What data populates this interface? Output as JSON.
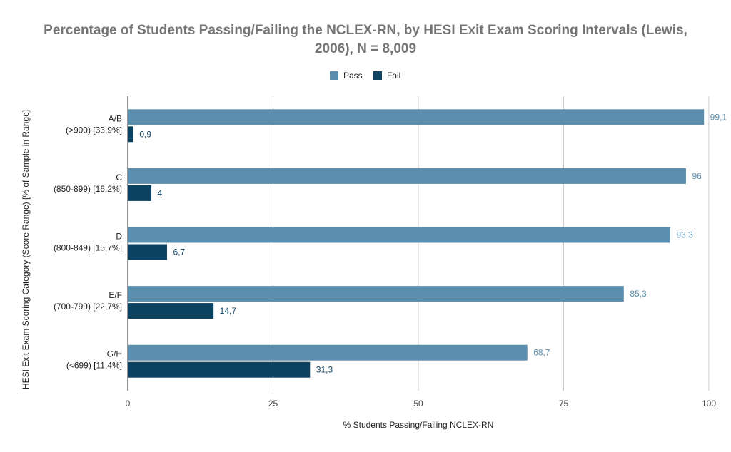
{
  "chart_data": {
    "type": "bar",
    "orientation": "horizontal",
    "title_line1": "Percentage of Students Passing/Failing the NCLEX-RN, by HESI Exit Exam Scoring Intervals (Lewis,",
    "title_line2": "2006), N = 8,009",
    "xlabel": "% Students Passing/Failing NCLEX-RN",
    "ylabel": "HESI Exit Exam Scoring Category (Score Range) [% of Sample in Range]",
    "xlim": [
      0,
      100
    ],
    "xticks": [
      0,
      25,
      50,
      75,
      100
    ],
    "grid": true,
    "legend_position": "top",
    "categories": [
      {
        "line1": "A/B",
        "line2": "(>900) [33,9%]"
      },
      {
        "line1": "C",
        "line2": "(850-899) [16,2%]"
      },
      {
        "line1": "D",
        "line2": "(800-849) [15,7%]"
      },
      {
        "line1": "E/F",
        "line2": "(700-799) [22,7%]"
      },
      {
        "line1": "G/H",
        "line2": "(<699) [11,4%]"
      }
    ],
    "series": [
      {
        "name": "Pass",
        "color": "#5b8fad",
        "values": [
          99.1,
          96,
          93.3,
          85.3,
          68.7
        ],
        "labels": [
          "99,1",
          "96",
          "93,3",
          "85,3",
          "68,7"
        ]
      },
      {
        "name": "Fail",
        "color": "#0d4261",
        "values": [
          0.9,
          4,
          6.7,
          14.7,
          31.3
        ],
        "labels": [
          "0,9",
          "4",
          "6,7",
          "14,7",
          "31,3"
        ]
      }
    ]
  }
}
